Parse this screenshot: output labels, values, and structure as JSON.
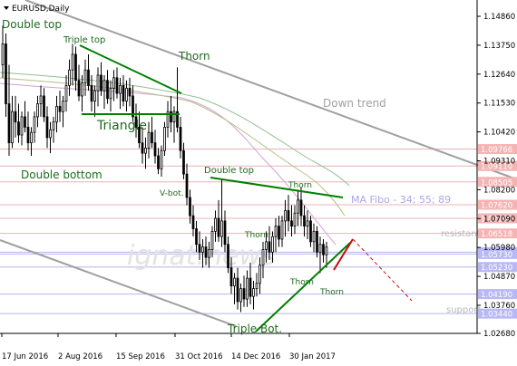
{
  "window": {
    "symbol_label": "EURUSD,Daily"
  },
  "colors": {
    "background": "#ffffff",
    "candle": "#000000",
    "trend_channel": "#a0a0a0",
    "pattern_line": "#008000",
    "pattern_text": "#1e6b1e",
    "level_line_red": "#e8b4b4",
    "level_line_blue": "#b4b4ee",
    "level_tag_red": "#f4b4b4",
    "level_tag_blue": "#b8b8f4",
    "forecast": "#c01010",
    "ma_fast": "#d4a0d4",
    "ma_mid": "#b0c080",
    "ma_slow": "#90c090",
    "axis_text": "#000000",
    "watermark": "#e3e3e3",
    "fibo_text": "#a8a8e8"
  },
  "chart_data": {
    "type": "candlestick",
    "symbol": "EURUSD",
    "timeframe": "Daily",
    "y_ticks": [
      "1.14860",
      "1.13750",
      "1.12640",
      "1.11530",
      "1.10420",
      "1.09310",
      "1.08200",
      "1.07090",
      "1.05980",
      "1.04870",
      "1.03760",
      "1.02680"
    ],
    "y_tick_values": [
      1.1486,
      1.1375,
      1.1264,
      1.1153,
      1.1042,
      1.0931,
      1.082,
      1.0709,
      1.0598,
      1.0487,
      1.0376,
      1.0268
    ],
    "ylim": [
      1.0268,
      1.1486
    ],
    "x_ticks": [
      "17 Jun 2016",
      "2 Aug 2016",
      "15 Sep 2016",
      "31 Oct 2016",
      "14 Dec 2016",
      "30 Jan 2017"
    ],
    "levels": [
      {
        "value": 1.0976,
        "label": "1.09766",
        "kind": "resistance"
      },
      {
        "value": 1.0911,
        "label": "1.09110",
        "kind": "resistance"
      },
      {
        "value": 1.085,
        "label": "1.08505",
        "kind": "resistance"
      },
      {
        "value": 1.0762,
        "label": "1.07620",
        "kind": "resistance"
      },
      {
        "value": 1.071,
        "label": "1.07100",
        "kind": "resistance"
      },
      {
        "value": 1.0652,
        "label": "1.06518",
        "kind": "resistance"
      },
      {
        "value": 1.058,
        "label": "1.05807",
        "kind": "support"
      },
      {
        "value": 1.0573,
        "label": "1.05730",
        "kind": "support"
      },
      {
        "value": 1.0523,
        "label": "1.05230",
        "kind": "support"
      },
      {
        "value": 1.0419,
        "label": "1.04190",
        "kind": "support"
      },
      {
        "value": 1.0344,
        "label": "1.03440",
        "kind": "support"
      }
    ],
    "candles": [
      {
        "o": 1.13,
        "h": 1.145,
        "l": 1.125,
        "c": 1.138
      },
      {
        "o": 1.138,
        "h": 1.142,
        "l": 1.11,
        "c": 1.115
      },
      {
        "o": 1.115,
        "h": 1.13,
        "l": 1.095,
        "c": 1.1
      },
      {
        "o": 1.1,
        "h": 1.118,
        "l": 1.098,
        "c": 1.112
      },
      {
        "o": 1.112,
        "h": 1.118,
        "l": 1.102,
        "c": 1.108
      },
      {
        "o": 1.108,
        "h": 1.115,
        "l": 1.1,
        "c": 1.103
      },
      {
        "o": 1.103,
        "h": 1.112,
        "l": 1.099,
        "c": 1.11
      },
      {
        "o": 1.11,
        "h": 1.116,
        "l": 1.104,
        "c": 1.106
      },
      {
        "o": 1.106,
        "h": 1.112,
        "l": 1.097,
        "c": 1.1
      },
      {
        "o": 1.1,
        "h": 1.106,
        "l": 1.095,
        "c": 1.104
      },
      {
        "o": 1.104,
        "h": 1.112,
        "l": 1.1,
        "c": 1.11
      },
      {
        "o": 1.11,
        "h": 1.118,
        "l": 1.106,
        "c": 1.115
      },
      {
        "o": 1.115,
        "h": 1.122,
        "l": 1.11,
        "c": 1.118
      },
      {
        "o": 1.118,
        "h": 1.121,
        "l": 1.108,
        "c": 1.11
      },
      {
        "o": 1.11,
        "h": 1.114,
        "l": 1.098,
        "c": 1.102
      },
      {
        "o": 1.102,
        "h": 1.108,
        "l": 1.096,
        "c": 1.105
      },
      {
        "o": 1.105,
        "h": 1.11,
        "l": 1.1,
        "c": 1.108
      },
      {
        "o": 1.108,
        "h": 1.118,
        "l": 1.104,
        "c": 1.114
      },
      {
        "o": 1.114,
        "h": 1.12,
        "l": 1.108,
        "c": 1.112
      },
      {
        "o": 1.112,
        "h": 1.118,
        "l": 1.106,
        "c": 1.116
      },
      {
        "o": 1.116,
        "h": 1.126,
        "l": 1.112,
        "c": 1.122
      },
      {
        "o": 1.122,
        "h": 1.132,
        "l": 1.118,
        "c": 1.128
      },
      {
        "o": 1.128,
        "h": 1.138,
        "l": 1.122,
        "c": 1.134
      },
      {
        "o": 1.134,
        "h": 1.137,
        "l": 1.12,
        "c": 1.124
      },
      {
        "o": 1.124,
        "h": 1.13,
        "l": 1.116,
        "c": 1.118
      },
      {
        "o": 1.118,
        "h": 1.126,
        "l": 1.112,
        "c": 1.123
      },
      {
        "o": 1.123,
        "h": 1.132,
        "l": 1.118,
        "c": 1.128
      },
      {
        "o": 1.128,
        "h": 1.134,
        "l": 1.12,
        "c": 1.122
      },
      {
        "o": 1.122,
        "h": 1.126,
        "l": 1.112,
        "c": 1.116
      },
      {
        "o": 1.116,
        "h": 1.122,
        "l": 1.11,
        "c": 1.12
      },
      {
        "o": 1.12,
        "h": 1.129,
        "l": 1.114,
        "c": 1.126
      },
      {
        "o": 1.126,
        "h": 1.131,
        "l": 1.118,
        "c": 1.12
      },
      {
        "o": 1.12,
        "h": 1.126,
        "l": 1.113,
        "c": 1.124
      },
      {
        "o": 1.124,
        "h": 1.128,
        "l": 1.115,
        "c": 1.117
      },
      {
        "o": 1.117,
        "h": 1.124,
        "l": 1.112,
        "c": 1.121
      },
      {
        "o": 1.121,
        "h": 1.128,
        "l": 1.116,
        "c": 1.125
      },
      {
        "o": 1.125,
        "h": 1.129,
        "l": 1.117,
        "c": 1.119
      },
      {
        "o": 1.119,
        "h": 1.125,
        "l": 1.113,
        "c": 1.122
      },
      {
        "o": 1.122,
        "h": 1.126,
        "l": 1.114,
        "c": 1.116
      },
      {
        "o": 1.116,
        "h": 1.124,
        "l": 1.112,
        "c": 1.121
      },
      {
        "o": 1.121,
        "h": 1.125,
        "l": 1.114,
        "c": 1.118
      },
      {
        "o": 1.118,
        "h": 1.122,
        "l": 1.108,
        "c": 1.11
      },
      {
        "o": 1.11,
        "h": 1.115,
        "l": 1.102,
        "c": 1.106
      },
      {
        "o": 1.106,
        "h": 1.112,
        "l": 1.098,
        "c": 1.1
      },
      {
        "o": 1.1,
        "h": 1.106,
        "l": 1.092,
        "c": 1.096
      },
      {
        "o": 1.096,
        "h": 1.102,
        "l": 1.09,
        "c": 1.098
      },
      {
        "o": 1.098,
        "h": 1.108,
        "l": 1.094,
        "c": 1.104
      },
      {
        "o": 1.104,
        "h": 1.11,
        "l": 1.098,
        "c": 1.1
      },
      {
        "o": 1.1,
        "h": 1.105,
        "l": 1.092,
        "c": 1.095
      },
      {
        "o": 1.095,
        "h": 1.098,
        "l": 1.088,
        "c": 1.09
      },
      {
        "o": 1.09,
        "h": 1.099,
        "l": 1.087,
        "c": 1.097
      },
      {
        "o": 1.097,
        "h": 1.108,
        "l": 1.095,
        "c": 1.106
      },
      {
        "o": 1.106,
        "h": 1.116,
        "l": 1.102,
        "c": 1.112
      },
      {
        "o": 1.112,
        "h": 1.118,
        "l": 1.104,
        "c": 1.108
      },
      {
        "o": 1.108,
        "h": 1.114,
        "l": 1.1,
        "c": 1.112
      },
      {
        "o": 1.112,
        "h": 1.129,
        "l": 1.104,
        "c": 1.106
      },
      {
        "o": 1.106,
        "h": 1.11,
        "l": 1.094,
        "c": 1.097
      },
      {
        "o": 1.097,
        "h": 1.1,
        "l": 1.086,
        "c": 1.088
      },
      {
        "o": 1.088,
        "h": 1.092,
        "l": 1.076,
        "c": 1.079
      },
      {
        "o": 1.079,
        "h": 1.082,
        "l": 1.069,
        "c": 1.072
      },
      {
        "o": 1.072,
        "h": 1.076,
        "l": 1.064,
        "c": 1.067
      },
      {
        "o": 1.067,
        "h": 1.07,
        "l": 1.058,
        "c": 1.061
      },
      {
        "o": 1.061,
        "h": 1.066,
        "l": 1.055,
        "c": 1.058
      },
      {
        "o": 1.058,
        "h": 1.063,
        "l": 1.052,
        "c": 1.06
      },
      {
        "o": 1.06,
        "h": 1.064,
        "l": 1.053,
        "c": 1.056
      },
      {
        "o": 1.056,
        "h": 1.062,
        "l": 1.052,
        "c": 1.059
      },
      {
        "o": 1.059,
        "h": 1.068,
        "l": 1.056,
        "c": 1.066
      },
      {
        "o": 1.066,
        "h": 1.074,
        "l": 1.062,
        "c": 1.071
      },
      {
        "o": 1.071,
        "h": 1.078,
        "l": 1.062,
        "c": 1.064
      },
      {
        "o": 1.064,
        "h": 1.086,
        "l": 1.06,
        "c": 1.07
      },
      {
        "o": 1.07,
        "h": 1.074,
        "l": 1.058,
        "c": 1.061
      },
      {
        "o": 1.061,
        "h": 1.064,
        "l": 1.05,
        "c": 1.052
      },
      {
        "o": 1.052,
        "h": 1.056,
        "l": 1.042,
        "c": 1.045
      },
      {
        "o": 1.045,
        "h": 1.05,
        "l": 1.038,
        "c": 1.048
      },
      {
        "o": 1.048,
        "h": 1.052,
        "l": 1.036,
        "c": 1.039
      },
      {
        "o": 1.039,
        "h": 1.046,
        "l": 1.035,
        "c": 1.044
      },
      {
        "o": 1.044,
        "h": 1.049,
        "l": 1.037,
        "c": 1.04
      },
      {
        "o": 1.04,
        "h": 1.051,
        "l": 1.037,
        "c": 1.048
      },
      {
        "o": 1.048,
        "h": 1.054,
        "l": 1.038,
        "c": 1.041
      },
      {
        "o": 1.041,
        "h": 1.047,
        "l": 1.036,
        "c": 1.044
      },
      {
        "o": 1.044,
        "h": 1.05,
        "l": 1.041,
        "c": 1.046
      },
      {
        "o": 1.046,
        "h": 1.056,
        "l": 1.042,
        "c": 1.053
      },
      {
        "o": 1.053,
        "h": 1.062,
        "l": 1.048,
        "c": 1.059
      },
      {
        "o": 1.059,
        "h": 1.066,
        "l": 1.054,
        "c": 1.062
      },
      {
        "o": 1.062,
        "h": 1.068,
        "l": 1.055,
        "c": 1.058
      },
      {
        "o": 1.058,
        "h": 1.066,
        "l": 1.054,
        "c": 1.064
      },
      {
        "o": 1.064,
        "h": 1.071,
        "l": 1.058,
        "c": 1.068
      },
      {
        "o": 1.068,
        "h": 1.072,
        "l": 1.06,
        "c": 1.063
      },
      {
        "o": 1.063,
        "h": 1.072,
        "l": 1.06,
        "c": 1.07
      },
      {
        "o": 1.07,
        "h": 1.078,
        "l": 1.064,
        "c": 1.074
      },
      {
        "o": 1.074,
        "h": 1.08,
        "l": 1.066,
        "c": 1.07
      },
      {
        "o": 1.07,
        "h": 1.076,
        "l": 1.064,
        "c": 1.068
      },
      {
        "o": 1.068,
        "h": 1.076,
        "l": 1.065,
        "c": 1.073
      },
      {
        "o": 1.073,
        "h": 1.082,
        "l": 1.068,
        "c": 1.078
      },
      {
        "o": 1.078,
        "h": 1.083,
        "l": 1.068,
        "c": 1.072
      },
      {
        "o": 1.072,
        "h": 1.076,
        "l": 1.064,
        "c": 1.068
      },
      {
        "o": 1.068,
        "h": 1.074,
        "l": 1.063,
        "c": 1.07
      },
      {
        "o": 1.07,
        "h": 1.072,
        "l": 1.06,
        "c": 1.062
      },
      {
        "o": 1.062,
        "h": 1.069,
        "l": 1.058,
        "c": 1.066
      },
      {
        "o": 1.066,
        "h": 1.068,
        "l": 1.056,
        "c": 1.058
      },
      {
        "o": 1.058,
        "h": 1.064,
        "l": 1.05,
        "c": 1.061
      },
      {
        "o": 1.061,
        "h": 1.063,
        "l": 1.054,
        "c": 1.057
      },
      {
        "o": 1.057,
        "h": 1.062,
        "l": 1.052,
        "c": 1.06
      }
    ],
    "annotations": {
      "double_top_1": "Double top",
      "triple_top": "Triple top",
      "thorn_1": "Thorn",
      "triangle": "Triangle",
      "double_bottom": "Double bottom",
      "v_bot": "V-bot.",
      "double_top_2": "Double top",
      "thorn_2": "Thorn",
      "thorn_3": "Thorn",
      "thorn_4": "Thorn",
      "thorn_5": "Thorn",
      "triple_bot": "Triple Bot.",
      "down_trend": "Down trend",
      "ma_fibo": "MA Fibo - 34; 55; 89",
      "resistance": "resistant",
      "support": "support",
      "watermark": "ignat.news"
    }
  }
}
